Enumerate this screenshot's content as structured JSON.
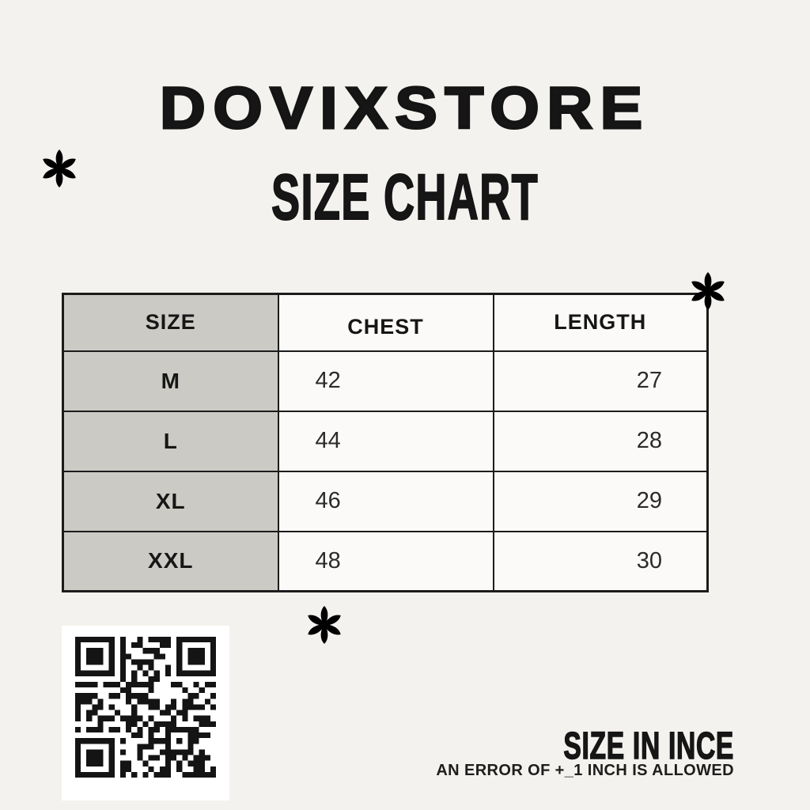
{
  "header": {
    "brand": "DOVIXSTORE",
    "title": "SIZE CHART"
  },
  "table": {
    "columns": [
      "SIZE",
      "CHEST",
      "LENGTH"
    ],
    "rows": [
      {
        "size": "M",
        "chest": "42",
        "length": "27"
      },
      {
        "size": "L",
        "chest": "44",
        "length": "28"
      },
      {
        "size": "XL",
        "chest": "46",
        "length": "29"
      },
      {
        "size": "XXL",
        "chest": "48",
        "length": "30"
      }
    ]
  },
  "footer": {
    "unit_note": "SIZE IN INCE",
    "error_note": "AN ERROR OF +_1 INCH IS ALLOWED"
  },
  "icons": {
    "asterisk": "✱",
    "qr": "qr-code"
  },
  "colors": {
    "background": "#f4f2ee",
    "ink": "#161616",
    "header_gray": "#cbcac4",
    "cell_white": "#fbfaf8",
    "qr_panel": "#ffffff"
  }
}
